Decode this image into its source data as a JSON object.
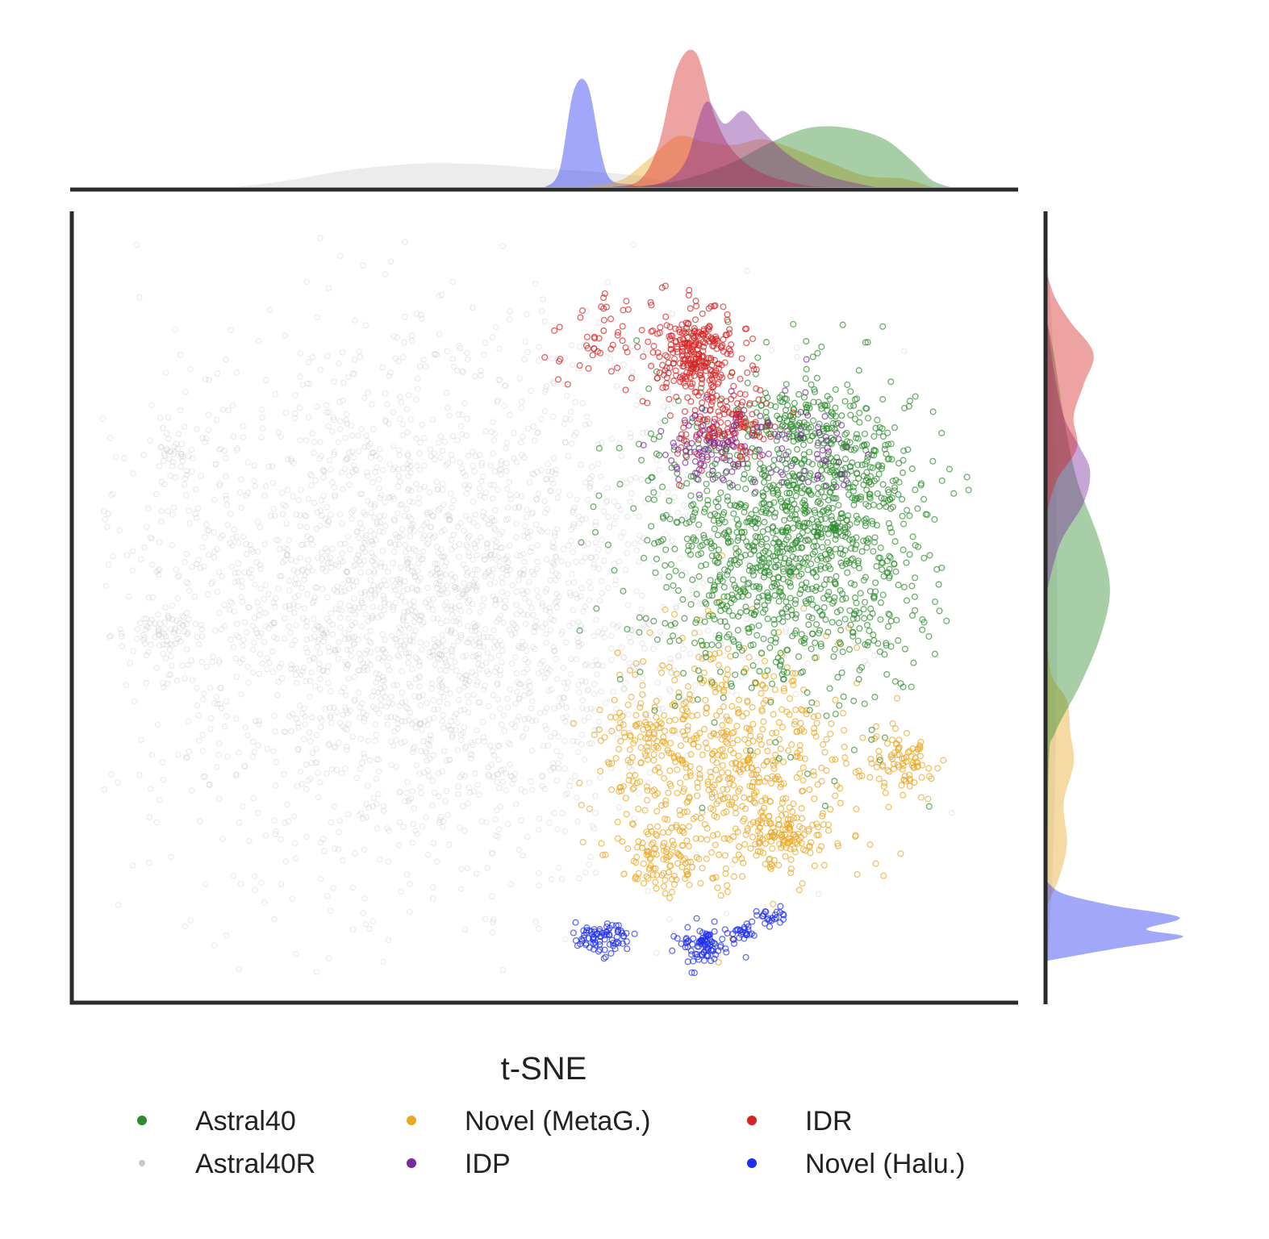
{
  "chart_data": {
    "type": "scatter",
    "subtype": "t-SNE embedding with marginal density plots",
    "title": "",
    "xlabel": "",
    "ylabel": "",
    "axis_ticks": "none",
    "grid": false,
    "marginals": "density curves on top (x) and right (y)",
    "legend": {
      "title": "t-SNE",
      "placement": "bottom-center",
      "columns": 3
    },
    "xlim": [
      0,
      100
    ],
    "ylim": [
      0,
      100
    ],
    "series": [
      {
        "name": "Astral40",
        "color": "#2e8b2e",
        "clusters": [
          {
            "cx": 75.5,
            "cy": 58,
            "sx": 7.5,
            "sy": 9.5,
            "n": 1250
          },
          {
            "cx": 77,
            "cy": 73,
            "sx": 2.5,
            "sy": 2,
            "n": 80
          },
          {
            "cx": 83,
            "cy": 68,
            "sx": 3,
            "sy": 5,
            "n": 120
          }
        ],
        "x_density": [
          [
            57,
            0
          ],
          [
            62,
            0.02
          ],
          [
            66,
            0.08
          ],
          [
            70,
            0.18
          ],
          [
            74,
            0.32
          ],
          [
            78,
            0.42
          ],
          [
            82,
            0.42
          ],
          [
            86,
            0.34
          ],
          [
            89,
            0.18
          ],
          [
            91,
            0.05
          ],
          [
            93,
            0
          ]
        ],
        "y_density": [
          [
            10,
            0
          ],
          [
            30,
            0.01
          ],
          [
            34,
            0.05
          ],
          [
            40,
            0.2
          ],
          [
            46,
            0.32
          ],
          [
            52,
            0.38
          ],
          [
            58,
            0.32
          ],
          [
            66,
            0.18
          ],
          [
            74,
            0.1
          ],
          [
            82,
            0.04
          ],
          [
            86,
            0
          ]
        ]
      },
      {
        "name": "Astral40R",
        "color": "#c8c8c8",
        "clusters": [
          {
            "cx": 38,
            "cy": 50,
            "sx": 16,
            "sy": 17,
            "n": 2800
          },
          {
            "cx": 10,
            "cy": 47,
            "sx": 2,
            "sy": 1.5,
            "n": 60
          },
          {
            "cx": 11,
            "cy": 69,
            "sx": 1.5,
            "sy": 1.5,
            "n": 40
          }
        ],
        "x_density": [
          [
            17,
            0
          ],
          [
            22,
            0.04
          ],
          [
            28,
            0.11
          ],
          [
            33,
            0.15
          ],
          [
            38,
            0.17
          ],
          [
            44,
            0.16
          ],
          [
            50,
            0.13
          ],
          [
            55,
            0.11
          ],
          [
            60,
            0.08
          ],
          [
            63,
            0.03
          ],
          [
            65,
            0
          ]
        ],
        "y_density": [
          [
            5,
            0
          ],
          [
            15,
            0.03
          ],
          [
            30,
            0.05
          ],
          [
            50,
            0.06
          ],
          [
            70,
            0.05
          ],
          [
            85,
            0.03
          ],
          [
            95,
            0
          ]
        ]
      },
      {
        "name": "Novel (MetaG.)",
        "color": "#e9a826",
        "clusters": [
          {
            "cx": 70,
            "cy": 30,
            "sx": 6.5,
            "sy": 8,
            "n": 650
          },
          {
            "cx": 87.5,
            "cy": 30,
            "sx": 2,
            "sy": 2,
            "n": 90
          },
          {
            "cx": 75,
            "cy": 21,
            "sx": 2.2,
            "sy": 1.8,
            "n": 90
          },
          {
            "cx": 62,
            "cy": 18,
            "sx": 2,
            "sy": 2,
            "n": 80
          },
          {
            "cx": 60,
            "cy": 34,
            "sx": 2,
            "sy": 2,
            "n": 60
          }
        ],
        "x_density": [
          [
            54,
            0
          ],
          [
            58,
            0.05
          ],
          [
            61,
            0.2
          ],
          [
            64,
            0.36
          ],
          [
            67,
            0.32
          ],
          [
            70,
            0.3
          ],
          [
            73,
            0.34
          ],
          [
            76,
            0.28
          ],
          [
            80,
            0.18
          ],
          [
            84,
            0.08
          ],
          [
            88,
            0.06
          ],
          [
            91,
            0
          ]
        ],
        "y_density": [
          [
            12,
            0
          ],
          [
            16,
            0.08
          ],
          [
            20,
            0.12
          ],
          [
            25,
            0.1
          ],
          [
            30,
            0.16
          ],
          [
            34,
            0.14
          ],
          [
            38,
            0.12
          ],
          [
            41,
            0.03
          ],
          [
            45,
            0
          ]
        ]
      },
      {
        "name": "IDP",
        "color": "#7a2a9a",
        "clusters": [
          {
            "cx": 68,
            "cy": 70,
            "sx": 2.2,
            "sy": 2.5,
            "n": 90
          },
          {
            "cx": 78,
            "cy": 69,
            "sx": 3,
            "sy": 3,
            "n": 60
          }
        ],
        "x_density": [
          [
            60,
            0
          ],
          [
            63,
            0.05
          ],
          [
            65,
            0.2
          ],
          [
            67,
            0.6
          ],
          [
            69,
            0.45
          ],
          [
            71,
            0.54
          ],
          [
            73,
            0.4
          ],
          [
            76,
            0.22
          ],
          [
            80,
            0.08
          ],
          [
            85,
            0
          ]
        ],
        "y_density": [
          [
            52,
            0
          ],
          [
            58,
            0.08
          ],
          [
            63,
            0.22
          ],
          [
            67,
            0.26
          ],
          [
            70,
            0.2
          ],
          [
            74,
            0.1
          ],
          [
            80,
            0.04
          ],
          [
            86,
            0
          ]
        ]
      },
      {
        "name": "IDR",
        "color": "#d62424",
        "clusters": [
          {
            "cx": 66,
            "cy": 82,
            "sx": 2.2,
            "sy": 3,
            "n": 280
          },
          {
            "cx": 69,
            "cy": 73,
            "sx": 2.5,
            "sy": 2.5,
            "n": 150
          },
          {
            "cx": 57,
            "cy": 83,
            "sx": 4,
            "sy": 3,
            "n": 60
          }
        ],
        "x_density": [
          [
            57,
            0
          ],
          [
            60,
            0.05
          ],
          [
            62,
            0.3
          ],
          [
            64,
            0.85
          ],
          [
            66,
            0.95
          ],
          [
            68,
            0.5
          ],
          [
            70,
            0.25
          ],
          [
            73,
            0.1
          ],
          [
            77,
            0.02
          ],
          [
            80,
            0
          ]
        ],
        "y_density": [
          [
            62,
            0
          ],
          [
            66,
            0.06
          ],
          [
            70,
            0.18
          ],
          [
            74,
            0.16
          ],
          [
            78,
            0.22
          ],
          [
            82,
            0.28
          ],
          [
            86,
            0.14
          ],
          [
            89,
            0.05
          ],
          [
            92,
            0
          ]
        ]
      },
      {
        "name": "Novel (Halu.)",
        "color": "#1f2ff0",
        "clusters": [
          {
            "cx": 56,
            "cy": 8,
            "sx": 1.4,
            "sy": 1,
            "n": 80
          },
          {
            "cx": 67,
            "cy": 7,
            "sx": 1.3,
            "sy": 1.2,
            "n": 90
          },
          {
            "cx": 70.5,
            "cy": 8.5,
            "sx": 0.9,
            "sy": 0.6,
            "n": 25
          },
          {
            "cx": 74,
            "cy": 10.5,
            "sx": 0.8,
            "sy": 0.5,
            "n": 25
          }
        ],
        "x_density": [
          [
            50,
            0
          ],
          [
            51.5,
            0.12
          ],
          [
            53,
            0.68
          ],
          [
            54.5,
            0.72
          ],
          [
            56,
            0.22
          ],
          [
            57,
            0.05
          ],
          [
            59,
            0.02
          ],
          [
            60,
            0
          ]
        ],
        "y_density": [
          [
            5,
            0
          ],
          [
            6.5,
            0.4
          ],
          [
            8,
            0.82
          ],
          [
            9,
            0.6
          ],
          [
            10.5,
            0.8
          ],
          [
            12,
            0.4
          ],
          [
            13.5,
            0.1
          ],
          [
            15,
            0
          ]
        ]
      }
    ]
  }
}
